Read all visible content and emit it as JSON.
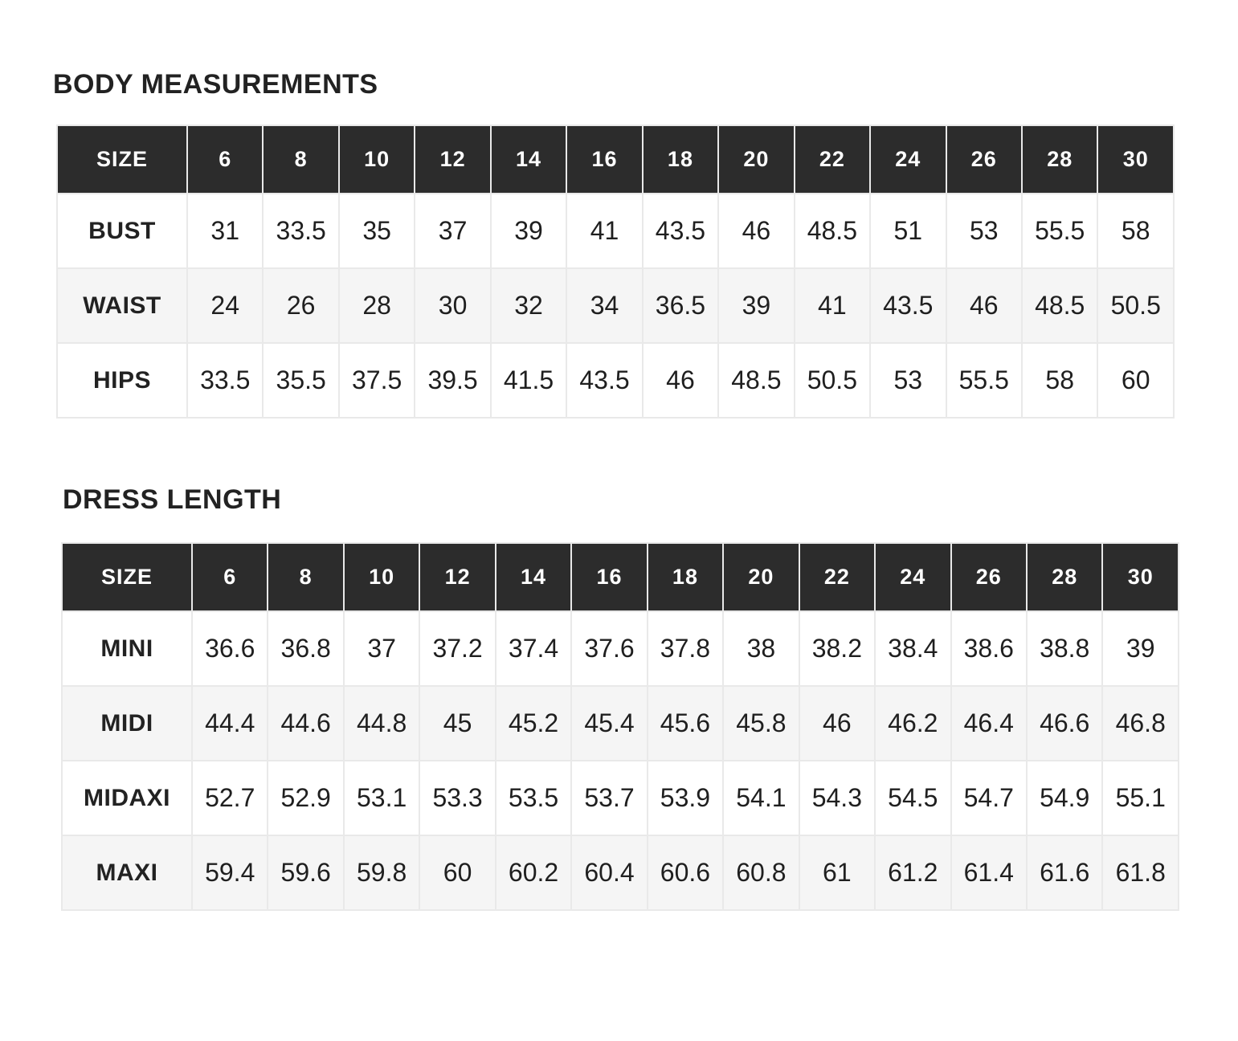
{
  "colors": {
    "page_bg": "#ffffff",
    "header_bg": "#2c2c2c",
    "header_text": "#ffffff",
    "row_bg": "#ffffff",
    "row_alt_bg": "#f5f5f5",
    "border": "#e9e9e9",
    "text": "#1f1f1f"
  },
  "tables": [
    {
      "title": "BODY MEASUREMENTS",
      "header": [
        "SIZE",
        "6",
        "8",
        "10",
        "12",
        "14",
        "16",
        "18",
        "20",
        "22",
        "24",
        "26",
        "28",
        "30"
      ],
      "rows": [
        {
          "label": "BUST",
          "values": [
            "31",
            "33.5",
            "35",
            "37",
            "39",
            "41",
            "43.5",
            "46",
            "48.5",
            "51",
            "53",
            "55.5",
            "58"
          ]
        },
        {
          "label": "WAIST",
          "values": [
            "24",
            "26",
            "28",
            "30",
            "32",
            "34",
            "36.5",
            "39",
            "41",
            "43.5",
            "46",
            "48.5",
            "50.5"
          ]
        },
        {
          "label": "HIPS",
          "values": [
            "33.5",
            "35.5",
            "37.5",
            "39.5",
            "41.5",
            "43.5",
            "46",
            "48.5",
            "50.5",
            "53",
            "55.5",
            "58",
            "60"
          ]
        }
      ]
    },
    {
      "title": "DRESS LENGTH",
      "header": [
        "SIZE",
        "6",
        "8",
        "10",
        "12",
        "14",
        "16",
        "18",
        "20",
        "22",
        "24",
        "26",
        "28",
        "30"
      ],
      "rows": [
        {
          "label": "MINI",
          "values": [
            "36.6",
            "36.8",
            "37",
            "37.2",
            "37.4",
            "37.6",
            "37.8",
            "38",
            "38.2",
            "38.4",
            "38.6",
            "38.8",
            "39"
          ]
        },
        {
          "label": "MIDI",
          "values": [
            "44.4",
            "44.6",
            "44.8",
            "45",
            "45.2",
            "45.4",
            "45.6",
            "45.8",
            "46",
            "46.2",
            "46.4",
            "46.6",
            "46.8"
          ]
        },
        {
          "label": "MIDAXI",
          "values": [
            "52.7",
            "52.9",
            "53.1",
            "53.3",
            "53.5",
            "53.7",
            "53.9",
            "54.1",
            "54.3",
            "54.5",
            "54.7",
            "54.9",
            "55.1"
          ]
        },
        {
          "label": "MAXI",
          "values": [
            "59.4",
            "59.6",
            "59.8",
            "60",
            "60.2",
            "60.4",
            "60.6",
            "60.8",
            "61",
            "61.2",
            "61.4",
            "61.6",
            "61.8"
          ]
        }
      ]
    }
  ]
}
